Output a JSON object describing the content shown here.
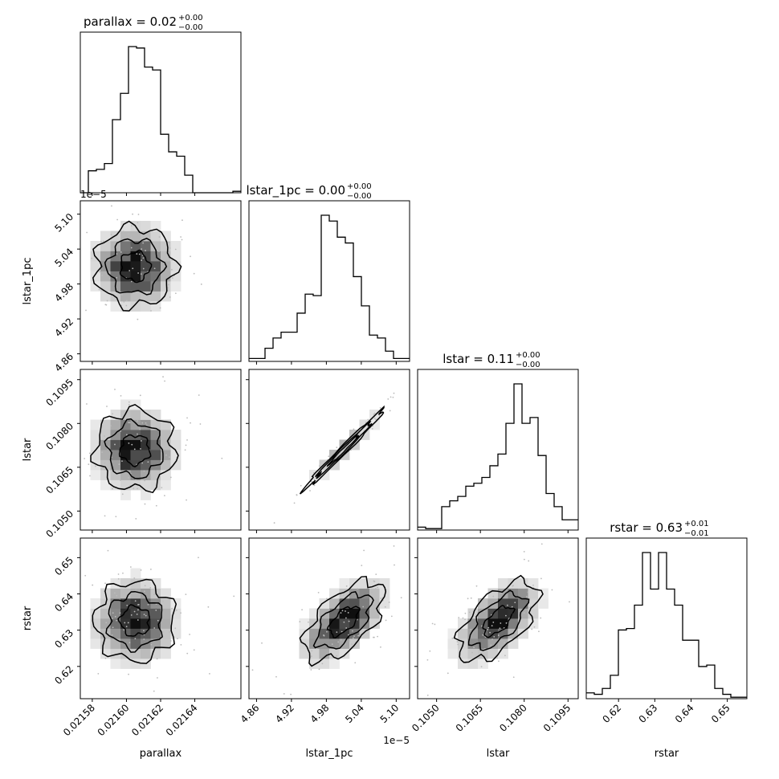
{
  "titles": {
    "parallax": {
      "main": "parallax = 0.02",
      "sup": "+0.00",
      "sub": "−0.00"
    },
    "lstar_1pc": {
      "main": "lstar_1pc = 0.00",
      "sup": "+0.00",
      "sub": "−0.00"
    },
    "lstar": {
      "main": "lstar = 0.11",
      "sup": "+0.00",
      "sub": "−0.00"
    },
    "rstar": {
      "main": "rstar = 0.63",
      "sup": "+0.01",
      "sub": "−0.01"
    }
  },
  "axis_labels": {
    "x": [
      "parallax",
      "lstar_1pc",
      "lstar",
      "rstar"
    ],
    "y": [
      "lstar_1pc",
      "lstar",
      "rstar"
    ]
  },
  "offsets": {
    "lstar_1pc_y": "1e−5",
    "lstar_1pc_x": "1e−5"
  },
  "ticks": {
    "parallax": {
      "values": [
        0.02158,
        0.0216,
        0.02162,
        0.02164
      ],
      "labels": [
        "0.02158",
        "0.02160",
        "0.02162",
        "0.02164"
      ]
    },
    "lstar_1pc": {
      "values": [
        4.86,
        4.92,
        4.98,
        5.04,
        5.1
      ],
      "labels": [
        "4.86",
        "4.92",
        "4.98",
        "5.04",
        "5.10"
      ]
    },
    "lstar": {
      "values": [
        0.105,
        0.1065,
        0.108,
        0.1095
      ],
      "labels": [
        "0.1050",
        "0.1065",
        "0.1080",
        "0.1095"
      ]
    },
    "rstar": {
      "values": [
        0.62,
        0.63,
        0.64,
        0.65
      ],
      "labels": [
        "0.62",
        "0.63",
        "0.64",
        "0.65"
      ]
    }
  },
  "chart_data": {
    "type": "corner",
    "parameters": [
      "parallax",
      "lstar_1pc",
      "lstar",
      "rstar"
    ],
    "ranges": {
      "parallax": [
        0.021573,
        0.021667
      ],
      "lstar_1pc": [
        4.847,
        5.123
      ],
      "lstar": [
        0.10435,
        0.10985
      ],
      "rstar": [
        0.6111,
        0.6554
      ]
    },
    "summary": {
      "parallax": {
        "median": 0.02,
        "plus": 0.0,
        "minus": 0.0
      },
      "lstar_1pc": {
        "median": 0.0,
        "plus": 0.0,
        "minus": 0.0
      },
      "lstar": {
        "median": 0.11,
        "plus": 0.0,
        "minus": 0.0
      },
      "rstar": {
        "median": 0.63,
        "plus": 0.01,
        "minus": 0.01
      }
    },
    "histograms": {
      "parallax": [
        0.0,
        0.15,
        0.16,
        0.2,
        0.5,
        0.68,
        1.0,
        0.99,
        0.86,
        0.84,
        0.4,
        0.28,
        0.25,
        0.12,
        0.0,
        0.0,
        0.0,
        0.0,
        0.0,
        0.01
      ],
      "lstar_1pc": [
        0.02,
        0.02,
        0.09,
        0.16,
        0.2,
        0.2,
        0.33,
        0.46,
        0.45,
        1.0,
        0.96,
        0.85,
        0.81,
        0.58,
        0.38,
        0.18,
        0.16,
        0.07,
        0.02,
        0.02
      ],
      "lstar": [
        0.02,
        0.01,
        0.01,
        0.16,
        0.2,
        0.23,
        0.3,
        0.32,
        0.36,
        0.44,
        0.52,
        0.73,
        1.0,
        0.73,
        0.77,
        0.51,
        0.25,
        0.16,
        0.07,
        0.07
      ],
      "rstar": [
        0.04,
        0.03,
        0.07,
        0.16,
        0.47,
        0.48,
        0.64,
        1.0,
        0.75,
        1.0,
        0.75,
        0.64,
        0.4,
        0.4,
        0.22,
        0.23,
        0.07,
        0.03,
        0.01,
        0.01
      ]
    },
    "correlations": [
      {
        "x": "parallax",
        "y": "lstar_1pc",
        "rho": 0.0
      },
      {
        "x": "parallax",
        "y": "lstar",
        "rho": 0.0
      },
      {
        "x": "parallax",
        "y": "rstar",
        "rho": 0.0
      },
      {
        "x": "lstar_1pc",
        "y": "lstar",
        "rho": 0.99
      },
      {
        "x": "lstar_1pc",
        "y": "rstar",
        "rho": 0.6
      },
      {
        "x": "lstar",
        "y": "rstar",
        "rho": 0.6
      }
    ],
    "contour_levels": 3,
    "density_colormap": "greys"
  }
}
